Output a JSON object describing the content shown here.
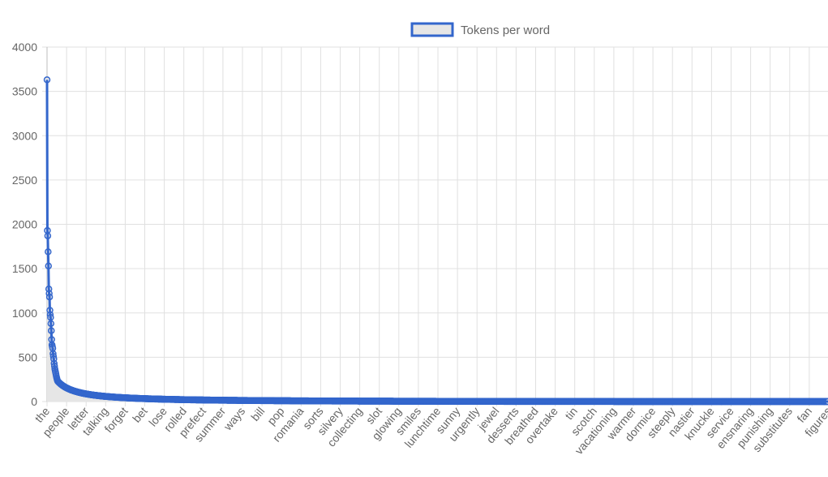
{
  "chart_data": {
    "type": "line",
    "legend": {
      "position": "top-center",
      "label": "Tokens per word"
    },
    "series": [
      {
        "name": "Tokens per word",
        "stroke_color": "#3366cc",
        "fill_color": "#e6e6e6",
        "head_values": [
          3630,
          1930,
          1870,
          1690,
          1530,
          1270,
          1220,
          1180,
          1030,
          980,
          950,
          880,
          800,
          700,
          640,
          620,
          600,
          540,
          510,
          480,
          430,
          400,
          370,
          350,
          330,
          310,
          290,
          270,
          255,
          240
        ],
        "tail": {
          "start": 230,
          "end": 0
        },
        "point_count": 2200
      }
    ],
    "categories_shown": [
      "the",
      "people",
      "letter",
      "talking",
      "forget",
      "bet",
      "lose",
      "rolled",
      "prefect",
      "summer",
      "ways",
      "bill",
      "pop",
      "romania",
      "sorts",
      "silvery",
      "collecting",
      "slot",
      "glowing",
      "smiles",
      "lunchtime",
      "sunny",
      "urgently",
      "jewel",
      "desserts",
      "breathed",
      "overtake",
      "tin",
      "scotch",
      "vacationing",
      "warmer",
      "dormice",
      "steeply",
      "nastier",
      "knuckle",
      "service",
      "ensnaring",
      "punishing",
      "substitutes",
      "fan",
      "figures"
    ],
    "y_ticks": [
      "0",
      "500",
      "1000",
      "1500",
      "2000",
      "2500",
      "3000",
      "3500",
      "4000"
    ],
    "ylim": [
      0,
      4000
    ],
    "grid": true,
    "colors": {
      "grid": "#e0e0e0",
      "axis": "#bdbdbd",
      "text": "#666666"
    }
  }
}
